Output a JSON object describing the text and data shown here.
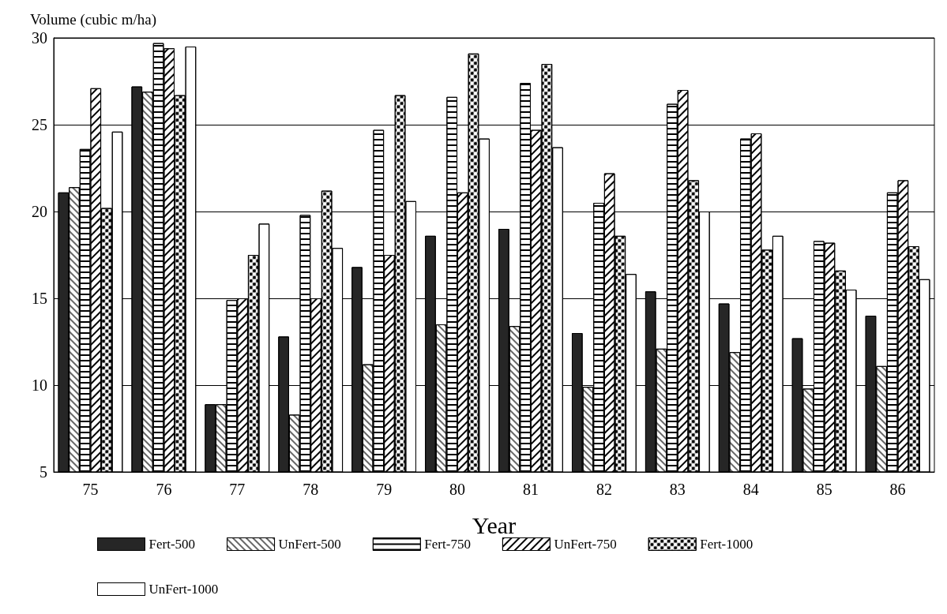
{
  "chart_data": {
    "type": "bar",
    "ylabel": "Volume (cubic m/ha)",
    "xlabel": "Year",
    "categories": [
      "75",
      "76",
      "77",
      "78",
      "79",
      "80",
      "81",
      "82",
      "83",
      "84",
      "85",
      "86"
    ],
    "series": [
      {
        "name": "Fert-500",
        "color": "#262626",
        "values": [
          21.1,
          27.2,
          8.9,
          12.8,
          16.8,
          18.6,
          19.0,
          13.0,
          15.4,
          14.7,
          12.7,
          14.0
        ]
      },
      {
        "name": "UnFert-500",
        "color": "#ffffff",
        "values": [
          21.4,
          26.9,
          8.9,
          8.3,
          11.2,
          13.5,
          13.4,
          9.9,
          12.1,
          11.9,
          9.8,
          11.1
        ]
      },
      {
        "name": "Fert-750",
        "color": "#ffffff",
        "values": [
          23.6,
          29.7,
          14.9,
          19.8,
          24.7,
          26.6,
          27.4,
          20.5,
          26.2,
          24.2,
          18.3,
          21.1
        ]
      },
      {
        "name": "UnFert-750",
        "color": "#ffffff",
        "values": [
          27.1,
          29.4,
          15.0,
          15.0,
          17.5,
          21.1,
          24.7,
          22.2,
          27.0,
          24.5,
          18.2,
          21.8
        ]
      },
      {
        "name": "Fert-1000",
        "color": "#ffffff",
        "values": [
          20.2,
          26.7,
          17.5,
          21.2,
          26.7,
          29.1,
          28.5,
          18.6,
          21.8,
          17.8,
          16.6,
          18.0
        ]
      },
      {
        "name": "UnFert-1000",
        "color": "#ffffff",
        "values": [
          24.6,
          29.5,
          19.3,
          17.9,
          20.6,
          24.2,
          23.7,
          16.4,
          20.0,
          18.6,
          15.5,
          16.1
        ]
      }
    ],
    "ylim": [
      5,
      30
    ],
    "yticks": [
      5,
      10,
      15,
      20,
      25,
      30
    ],
    "grid": "y",
    "legend": "bottom"
  }
}
